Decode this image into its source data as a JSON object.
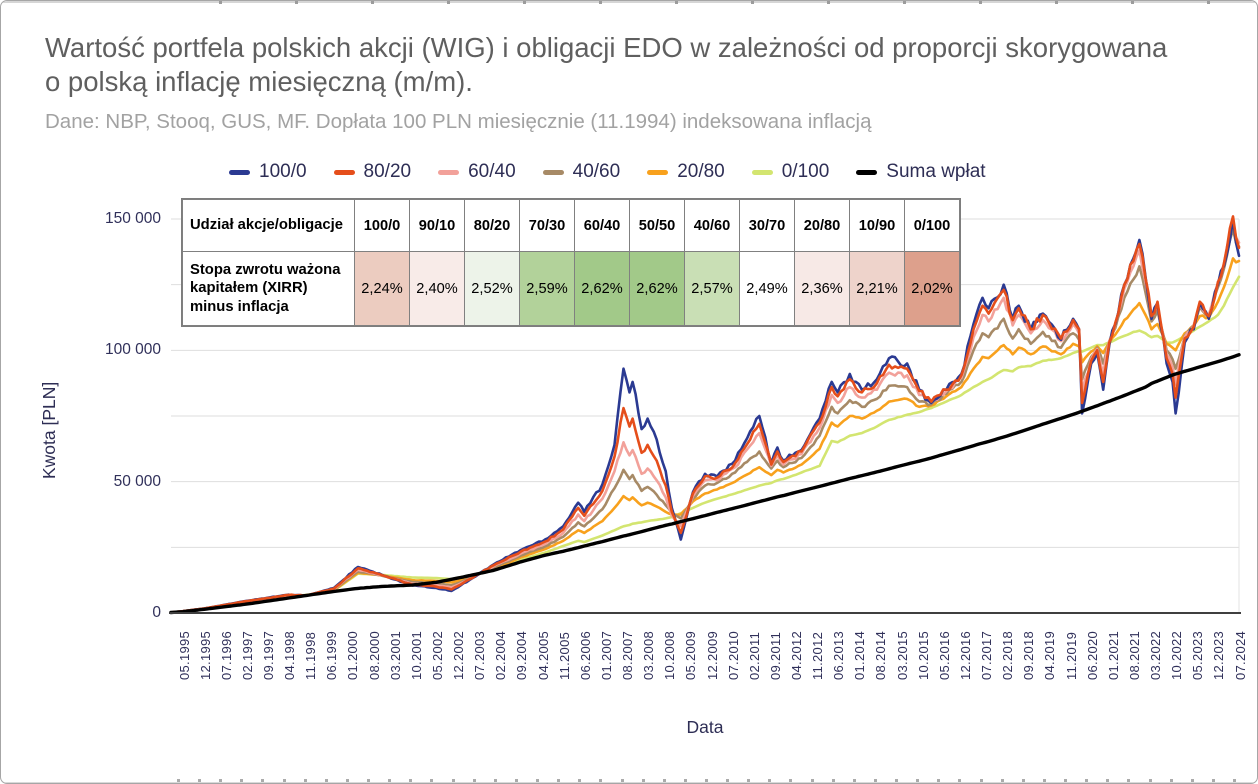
{
  "title": "Wartość portfela polskich akcji (WIG) i obligacji EDO w zależności od proporcji skorygowana o polską inflację miesięczną (m/m).",
  "subtitle": "Dane: NBP, Stooq, GUS, MF. Dopłata 100 PLN miesięcznie (11.1994) indeksowana inflacją",
  "legend": [
    {
      "label": "100/0",
      "color": "#2b3a92"
    },
    {
      "label": "80/20",
      "color": "#e54e1b"
    },
    {
      "label": "60/40",
      "color": "#f2a19a"
    },
    {
      "label": "40/60",
      "color": "#a78a66"
    },
    {
      "label": "20/80",
      "color": "#f8a11d"
    },
    {
      "label": "0/100",
      "color": "#d3e570"
    },
    {
      "label": "Suma wpłat",
      "color": "#000000"
    }
  ],
  "table": {
    "header_label": "Udział akcje/obligacje",
    "columns": [
      "100/0",
      "90/10",
      "80/20",
      "70/30",
      "60/40",
      "50/50",
      "40/60",
      "30/70",
      "20/80",
      "10/90",
      "0/100"
    ],
    "row_label": "Stopa zwrotu ważona kapitałem (XIRR) minus inflacja",
    "values": [
      "2,24%",
      "2,40%",
      "2,52%",
      "2,59%",
      "2,62%",
      "2,62%",
      "2,57%",
      "2,49%",
      "2,36%",
      "2,21%",
      "2,02%"
    ],
    "cell_colors": [
      "#ecccc0",
      "#f8ebe8",
      "#edf3e9",
      "#b2d29a",
      "#a2c989",
      "#a2c989",
      "#c9dfb5",
      "#ffffff",
      "#f7e9e6",
      "#eed3cb",
      "#dda08c"
    ]
  },
  "chart_data": {
    "type": "line",
    "title": "Wartość portfela polskich akcji (WIG) i obligacji EDO w zależności od proporcji skorygowana o polską inflację miesięczną (m/m).",
    "xlabel": "Data",
    "ylabel": "Kwota [PLN]",
    "ylim": [
      0,
      150000
    ],
    "grid": true,
    "legend_position": "top",
    "y_ticks": [
      "0",
      "50 000",
      "100 000",
      "150 000"
    ],
    "y_tick_values": [
      0,
      50000,
      100000,
      150000
    ],
    "x_ticks": [
      "05.1995",
      "12.1995",
      "07.1996",
      "02.1997",
      "09.1997",
      "04.1998",
      "11.1998",
      "06.1999",
      "01.2000",
      "08.2000",
      "03.2001",
      "10.2001",
      "05.2002",
      "12.2002",
      "07.2003",
      "02.2004",
      "09.2004",
      "04.2005",
      "11.2005",
      "06.2006",
      "01.2007",
      "08.2007",
      "03.2008",
      "10.2008",
      "05.2009",
      "12.2009",
      "07.2010",
      "02.2011",
      "09.2011",
      "04.2012",
      "11.2012",
      "06.2013",
      "01.2014",
      "08.2014",
      "03.2015",
      "10.2015",
      "05.2016",
      "12.2016",
      "07.2017",
      "02.2018",
      "09.2018",
      "04.2019",
      "11.2019",
      "06.2020",
      "01.2021",
      "08.2021",
      "03.2022",
      "10.2022",
      "05.2023",
      "12.2023",
      "07.2024"
    ],
    "x": [
      "1995-01",
      "1995-05",
      "1995-12",
      "1997-02",
      "1997-09",
      "1998-04",
      "1998-10",
      "1999-07",
      "2000-03",
      "2000-11",
      "2001-09",
      "2002-05",
      "2002-10",
      "2003-01",
      "2003-12",
      "2004-09",
      "2005-05",
      "2005-11",
      "2006-04",
      "2006-06",
      "2006-12",
      "2007-02",
      "2007-04",
      "2007-07",
      "2007-09",
      "2007-10",
      "2008-01",
      "2008-03",
      "2008-06",
      "2008-09",
      "2008-11",
      "2009-02",
      "2009-06",
      "2009-10",
      "2010-02",
      "2010-08",
      "2011-04",
      "2011-08",
      "2011-10",
      "2011-12",
      "2012-06",
      "2012-12",
      "2013-04",
      "2013-06",
      "2013-10",
      "2014-02",
      "2014-07",
      "2014-11",
      "2015-05",
      "2015-09",
      "2016-01",
      "2016-06",
      "2016-11",
      "2017-03",
      "2017-06",
      "2017-08",
      "2018-01",
      "2018-04",
      "2018-06",
      "2018-10",
      "2019-02",
      "2019-08",
      "2019-12",
      "2020-02",
      "2020-03",
      "2020-06",
      "2020-08",
      "2020-10",
      "2020-12",
      "2021-02",
      "2021-05",
      "2021-08",
      "2021-10",
      "2021-12",
      "2022-02",
      "2022-04",
      "2022-07",
      "2022-09",
      "2022-10",
      "2023-01",
      "2023-04",
      "2023-06",
      "2023-09",
      "2023-12",
      "2024-02",
      "2024-05",
      "2024-06",
      "2024-07"
    ],
    "series": [
      {
        "name": "100/0",
        "color": "#2b3a92",
        "values": [
          200,
          700,
          1700,
          4600,
          5800,
          7000,
          6600,
          9500,
          17500,
          14500,
          10500,
          9500,
          8400,
          10500,
          18500,
          24000,
          28000,
          33000,
          42000,
          38500,
          49000,
          56000,
          64000,
          93000,
          84000,
          88000,
          70000,
          74000,
          66000,
          54000,
          40000,
          28000,
          46000,
          53000,
          52000,
          58000,
          75000,
          57000,
          63000,
          58000,
          62000,
          74000,
          88000,
          84000,
          91000,
          85000,
          89000,
          97000,
          95000,
          85000,
          80000,
          85000,
          91000,
          110000,
          120000,
          116000,
          125000,
          112000,
          117000,
          108000,
          114000,
          104000,
          112000,
          108000,
          76000,
          95000,
          99000,
          85000,
          102000,
          110000,
          125000,
          135000,
          142000,
          128000,
          112000,
          118000,
          95000,
          88000,
          76000,
          103000,
          108000,
          118000,
          112000,
          125000,
          132000,
          150000,
          141000,
          136000
        ]
      },
      {
        "name": "80/20",
        "color": "#e54e1b",
        "values": [
          200,
          700,
          1700,
          4500,
          5700,
          6900,
          6700,
          9300,
          17000,
          14400,
          10800,
          10000,
          9000,
          10800,
          18200,
          23400,
          27200,
          31800,
          40000,
          37000,
          46500,
          52500,
          59500,
          78000,
          71000,
          74000,
          61000,
          64000,
          58000,
          48500,
          38500,
          30500,
          45500,
          52000,
          51500,
          57000,
          72000,
          56500,
          61500,
          57500,
          61500,
          72500,
          86000,
          82500,
          89000,
          84000,
          87500,
          94500,
          93000,
          84500,
          80500,
          85000,
          90500,
          108000,
          117000,
          114000,
          123000,
          111500,
          116000,
          108000,
          113500,
          104500,
          111500,
          108000,
          80000,
          96000,
          100000,
          88000,
          103000,
          110500,
          125000,
          134000,
          140500,
          127500,
          113000,
          118500,
          97000,
          91000,
          82000,
          104500,
          109000,
          118500,
          113000,
          126000,
          133000,
          151000,
          143000,
          139000
        ]
      },
      {
        "name": "60/40",
        "color": "#f2a19a",
        "values": [
          200,
          700,
          1700,
          4400,
          5500,
          6700,
          6700,
          9100,
          16500,
          14300,
          11200,
          10600,
          9700,
          11200,
          17800,
          22700,
          26300,
          30500,
          37500,
          35000,
          43500,
          48500,
          54000,
          65000,
          60000,
          62000,
          53000,
          55000,
          50500,
          44000,
          37000,
          33000,
          44500,
          50500,
          50500,
          55500,
          68500,
          56000,
          60000,
          56500,
          60500,
          70500,
          83000,
          80000,
          86000,
          82000,
          85000,
          91500,
          90500,
          83000,
          80000,
          84500,
          89500,
          105000,
          113500,
          111000,
          120000,
          109500,
          113500,
          106500,
          111500,
          103500,
          110000,
          106500,
          84000,
          96500,
          100500,
          91000,
          103500,
          110000,
          123500,
          132000,
          138000,
          126000,
          112500,
          117500,
          98500,
          93500,
          87000,
          105000,
          109500,
          118000,
          113500,
          125500,
          133000,
          149500,
          143000,
          141000
        ]
      },
      {
        "name": "40/60",
        "color": "#a78a66",
        "values": [
          200,
          700,
          1700,
          4200,
          5200,
          6400,
          6700,
          8900,
          15800,
          14200,
          11800,
          11300,
          10500,
          11700,
          17300,
          21900,
          25300,
          29000,
          34500,
          33000,
          39500,
          43500,
          47500,
          54500,
          51000,
          52500,
          46500,
          48000,
          45000,
          41000,
          38000,
          36000,
          43500,
          48500,
          49500,
          53500,
          61500,
          55000,
          58000,
          55500,
          59000,
          67500,
          78500,
          76000,
          81000,
          78500,
          81500,
          86500,
          86000,
          80500,
          79500,
          83500,
          88000,
          100000,
          106500,
          105000,
          112000,
          104500,
          108000,
          102500,
          107000,
          101000,
          106500,
          104000,
          89000,
          97500,
          101000,
          95000,
          103500,
          108500,
          120000,
          127000,
          132000,
          122000,
          111000,
          115000,
          100000,
          96500,
          93000,
          105500,
          109500,
          116500,
          113000,
          124000,
          131000,
          146000,
          141000,
          139500
        ]
      },
      {
        "name": "20/80",
        "color": "#f8a11d",
        "values": [
          200,
          700,
          1700,
          4100,
          5000,
          6200,
          6800,
          8700,
          15300,
          14300,
          12500,
          12200,
          11600,
          12500,
          16800,
          21200,
          24300,
          27500,
          31500,
          30500,
          35000,
          37500,
          40000,
          44500,
          43000,
          44000,
          41000,
          42000,
          40500,
          38500,
          37500,
          37500,
          42500,
          45500,
          47000,
          50000,
          55500,
          52500,
          54500,
          53500,
          56500,
          62500,
          72500,
          71000,
          75000,
          74000,
          77000,
          80500,
          81500,
          78500,
          79000,
          82500,
          86000,
          93000,
          97500,
          97000,
          102000,
          98500,
          101000,
          98500,
          101500,
          98500,
          102500,
          101500,
          95500,
          99500,
          101500,
          99000,
          103000,
          106000,
          111500,
          115500,
          118000,
          113500,
          108000,
          110000,
          102500,
          101000,
          100000,
          106500,
          109500,
          113000,
          112500,
          118500,
          124000,
          135000,
          133500,
          134000
        ]
      },
      {
        "name": "0/100",
        "color": "#d3e570",
        "values": [
          200,
          700,
          1700,
          4000,
          4900,
          6000,
          6900,
          8500,
          15000,
          14500,
          13500,
          13300,
          12900,
          13600,
          16200,
          20300,
          23000,
          25500,
          27500,
          27000,
          29500,
          30500,
          31500,
          33000,
          33500,
          34000,
          34500,
          35000,
          35500,
          36000,
          36500,
          38000,
          40000,
          42000,
          43500,
          45500,
          48500,
          49500,
          50500,
          51000,
          53500,
          56000,
          65500,
          65000,
          67500,
          68500,
          71000,
          73500,
          75500,
          76500,
          78000,
          80500,
          83000,
          86000,
          88000,
          89000,
          92500,
          92000,
          93500,
          94000,
          96000,
          97000,
          99000,
          99800,
          99500,
          101000,
          102000,
          102000,
          103000,
          104000,
          105500,
          107000,
          107500,
          106500,
          105000,
          105500,
          103000,
          103000,
          103500,
          105500,
          107500,
          109000,
          111000,
          113500,
          117000,
          124000,
          126000,
          128000
        ]
      },
      {
        "name": "Suma wpłat",
        "color": "#000000",
        "values": [
          200,
          500,
          1420,
          3370,
          4530,
          5700,
          6700,
          8200,
          9380,
          10120,
          10630,
          11700,
          12830,
          13500,
          16250,
          19500,
          22000,
          23500,
          24900,
          25500,
          27200,
          27800,
          28400,
          29300,
          29800,
          30100,
          31000,
          31600,
          32500,
          33400,
          33900,
          34800,
          35900,
          37100,
          38300,
          40000,
          42400,
          43600,
          44200,
          44700,
          46500,
          48200,
          49400,
          50000,
          51200,
          52300,
          53700,
          54900,
          56700,
          57800,
          59000,
          60700,
          62300,
          63700,
          64700,
          65300,
          67000,
          68100,
          68800,
          70300,
          71900,
          74100,
          75600,
          76400,
          76800,
          78100,
          78900,
          79800,
          80600,
          81500,
          82800,
          84200,
          85100,
          86000,
          87400,
          88300,
          89700,
          90600,
          91000,
          92000,
          93000,
          93700,
          94700,
          95700,
          96400,
          97500,
          97900,
          98300
        ]
      }
    ]
  }
}
